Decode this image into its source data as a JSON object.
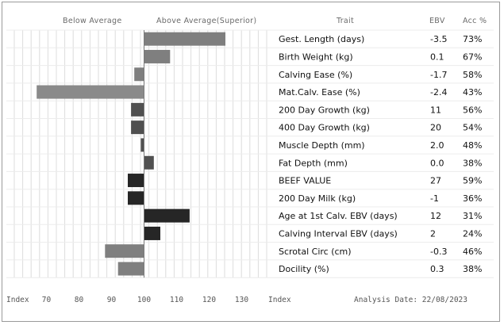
{
  "chart_data": {
    "type": "bar",
    "orientation": "horizontal",
    "baseline": 100,
    "xlim": [
      65,
      135
    ],
    "grid": true,
    "header_below": "Below Average",
    "header_above": "Above Average(Superior)",
    "column_trait": "Trait",
    "column_ebv": "EBV",
    "column_acc": "Acc %",
    "x_axis_label_left": "Index",
    "x_ticks": [
      70,
      80,
      90,
      100,
      110,
      120,
      130
    ],
    "x_axis_label_right": "Index",
    "analysis_date": "Analysis Date: 22/08/2023",
    "rows": [
      {
        "trait": "Gest. Length (days)",
        "ebv": "-3.5",
        "acc": "73%",
        "index": 125,
        "color": "#7f7f7f"
      },
      {
        "trait": "Birth Weight (kg)",
        "ebv": "0.1",
        "acc": "67%",
        "index": 108,
        "color": "#7f7f7f"
      },
      {
        "trait": "Calving Ease (%)",
        "ebv": "-1.7",
        "acc": "58%",
        "index": 97,
        "color": "#7f7f7f"
      },
      {
        "trait": "Mat.Calv. Ease (%)",
        "ebv": "-2.4",
        "acc": "43%",
        "index": 67,
        "color": "#8a8a8a"
      },
      {
        "trait": "200 Day Growth (kg)",
        "ebv": "11",
        "acc": "56%",
        "index": 96,
        "color": "#505050"
      },
      {
        "trait": "400 Day Growth (kg)",
        "ebv": "20",
        "acc": "54%",
        "index": 96,
        "color": "#505050"
      },
      {
        "trait": "Muscle Depth (mm)",
        "ebv": "2.0",
        "acc": "48%",
        "index": 99,
        "color": "#505050"
      },
      {
        "trait": "Fat Depth (mm)",
        "ebv": "0.0",
        "acc": "38%",
        "index": 103,
        "color": "#505050"
      },
      {
        "trait": "BEEF VALUE",
        "ebv": "27",
        "acc": "59%",
        "index": 95,
        "color": "#262626"
      },
      {
        "trait": "200 Day Milk (kg)",
        "ebv": "-1",
        "acc": "36%",
        "index": 95,
        "color": "#262626"
      },
      {
        "trait": "Age at 1st Calv. EBV (days)",
        "ebv": "12",
        "acc": "31%",
        "index": 114,
        "color": "#262626"
      },
      {
        "trait": "Calving Interval EBV (days)",
        "ebv": "2",
        "acc": "24%",
        "index": 105,
        "color": "#262626"
      },
      {
        "trait": "Scrotal Circ (cm)",
        "ebv": "-0.3",
        "acc": "46%",
        "index": 88,
        "color": "#7f7f7f"
      },
      {
        "trait": "Docility (%)",
        "ebv": "0.3",
        "acc": "38%",
        "index": 92,
        "color": "#7f7f7f"
      }
    ]
  }
}
